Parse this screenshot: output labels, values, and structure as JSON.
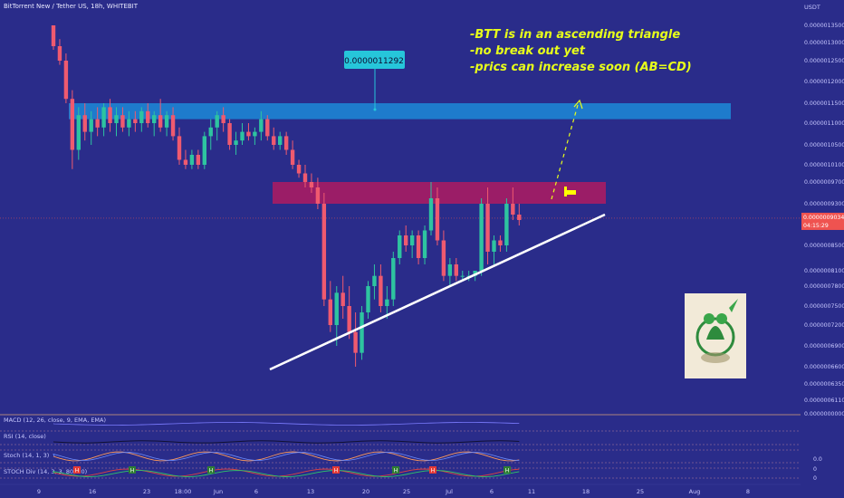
{
  "header": {
    "symbol_title": "BitTorrent New / Tether US, 18h, WHITEBIT",
    "currency": "USDT"
  },
  "price_axis": {
    "ticks": [
      "0.0000013500",
      "0.0000013000",
      "0.0000012500",
      "0.0000012000",
      "0.0000011500",
      "0.0000011000",
      "0.0000010500",
      "0.0000010100",
      "0.0000009700",
      "0.0000009300",
      "0.0000008900",
      "0.0000008500",
      "0.0000008100",
      "0.0000007800",
      "0.0000007500",
      "0.0000007200",
      "0.0000006900",
      "0.0000006600",
      "0.0000006350",
      "0.0000006110",
      "0.0000000000"
    ],
    "current_price": "0.0000009034",
    "countdown": "04:15:29",
    "osc_ticks": [
      "0.0",
      "0",
      "0"
    ]
  },
  "time_axis": {
    "labels": [
      "9",
      "16",
      "23",
      "18:00",
      "Jun",
      "6",
      "13",
      "20",
      "25",
      "Jul",
      "6",
      "11",
      "18",
      "25",
      "Aug",
      "8"
    ]
  },
  "annotation": {
    "lines": [
      "-BTT is in an ascending triangle",
      "-no break out yet",
      "-prics can increase soon (AB=CD)"
    ],
    "price_label": "0.0000011292"
  },
  "indicators": {
    "macd": "MACD (12, 26, close, 9, EMA, EMA)",
    "rsi": "RSI (14, close)",
    "stoch": "Stoch (14, 1, 3)",
    "stoch_div": "STOCH Div (14, 3, 3, 80, 20)",
    "marker_labels": [
      "H",
      "H",
      "H",
      "H",
      "H",
      "H",
      "H"
    ]
  },
  "colors": {
    "background": "#2a2c8a",
    "up_candle": "#2ec4a0",
    "down_candle": "#ef5a6f",
    "resistance_zone": "#1e7fd0",
    "supply_zone": "#c2185b",
    "trendline": "#ffffff",
    "annotation_text": "#e8ff1a",
    "price_tag": "#ef5350"
  },
  "chart_data": {
    "type": "candlestick",
    "title": "BitTorrent New / Tether US, 18h, WHITEBIT",
    "ylabel": "USDT",
    "ylim": [
      6.1e-07,
      1.35e-06
    ],
    "zones": [
      {
        "name": "resistance",
        "from": 1.11e-06,
        "to": 1.15e-06
      },
      {
        "name": "supply",
        "from": 9.3e-07,
        "to": 9.7e-07
      }
    ],
    "trendline": {
      "from": {
        "x": 49,
        "y": 6.5e-07
      },
      "to": {
        "x": 105,
        "y": 9.1e-07
      }
    },
    "projection": {
      "from": {
        "x": 99,
        "y": 9.3e-07
      },
      "to": {
        "x": 103,
        "y": 1.16e-06
      }
    },
    "candles": [
      {
        "i": 0,
        "o": 1.35e-06,
        "h": 1.37e-06,
        "l": 1.28e-06,
        "c": 1.29e-06
      },
      {
        "i": 1,
        "o": 1.29e-06,
        "h": 1.31e-06,
        "l": 1.24e-06,
        "c": 1.25e-06
      },
      {
        "i": 2,
        "o": 1.25e-06,
        "h": 1.27e-06,
        "l": 1.15e-06,
        "c": 1.16e-06
      },
      {
        "i": 3,
        "o": 1.16e-06,
        "h": 1.18e-06,
        "l": 1e-06,
        "c": 1.04e-06
      },
      {
        "i": 4,
        "o": 1.04e-06,
        "h": 1.14e-06,
        "l": 1.02e-06,
        "c": 1.12e-06
      },
      {
        "i": 5,
        "o": 1.12e-06,
        "h": 1.15e-06,
        "l": 1.06e-06,
        "c": 1.08e-06
      },
      {
        "i": 6,
        "o": 1.08e-06,
        "h": 1.13e-06,
        "l": 1.05e-06,
        "c": 1.11e-06
      },
      {
        "i": 7,
        "o": 1.11e-06,
        "h": 1.14e-06,
        "l": 1.07e-06,
        "c": 1.09e-06
      },
      {
        "i": 8,
        "o": 1.09e-06,
        "h": 1.15e-06,
        "l": 1.07e-06,
        "c": 1.14e-06
      },
      {
        "i": 9,
        "o": 1.14e-06,
        "h": 1.16e-06,
        "l": 1.08e-06,
        "c": 1.1e-06
      },
      {
        "i": 10,
        "o": 1.1e-06,
        "h": 1.14e-06,
        "l": 1.07e-06,
        "c": 1.12e-06
      },
      {
        "i": 11,
        "o": 1.12e-06,
        "h": 1.14e-06,
        "l": 1.08e-06,
        "c": 1.09e-06
      },
      {
        "i": 12,
        "o": 1.09e-06,
        "h": 1.13e-06,
        "l": 1.07e-06,
        "c": 1.11e-06
      },
      {
        "i": 13,
        "o": 1.11e-06,
        "h": 1.13e-06,
        "l": 1.08e-06,
        "c": 1.1e-06
      },
      {
        "i": 14,
        "o": 1.1e-06,
        "h": 1.14e-06,
        "l": 1.08e-06,
        "c": 1.13e-06
      },
      {
        "i": 15,
        "o": 1.13e-06,
        "h": 1.15e-06,
        "l": 1.09e-06,
        "c": 1.1e-06
      },
      {
        "i": 16,
        "o": 1.1e-06,
        "h": 1.13e-06,
        "l": 1.07e-06,
        "c": 1.12e-06
      },
      {
        "i": 17,
        "o": 1.12e-06,
        "h": 1.16e-06,
        "l": 1.08e-06,
        "c": 1.09e-06
      },
      {
        "i": 18,
        "o": 1.09e-06,
        "h": 1.13e-06,
        "l": 1.07e-06,
        "c": 1.12e-06
      },
      {
        "i": 19,
        "o": 1.12e-06,
        "h": 1.14e-06,
        "l": 1.06e-06,
        "c": 1.07e-06
      },
      {
        "i": 20,
        "o": 1.07e-06,
        "h": 1.09e-06,
        "l": 1.01e-06,
        "c": 1.02e-06
      },
      {
        "i": 21,
        "o": 1.02e-06,
        "h": 1.04e-06,
        "l": 1e-06,
        "c": 1.01e-06
      },
      {
        "i": 22,
        "o": 1.01e-06,
        "h": 1.04e-06,
        "l": 1e-06,
        "c": 1.03e-06
      },
      {
        "i": 23,
        "o": 1.03e-06,
        "h": 1.04e-06,
        "l": 1e-06,
        "c": 1.01e-06
      },
      {
        "i": 24,
        "o": 1.01e-06,
        "h": 1.08e-06,
        "l": 1e-06,
        "c": 1.07e-06
      },
      {
        "i": 25,
        "o": 1.07e-06,
        "h": 1.11e-06,
        "l": 1.04e-06,
        "c": 1.09e-06
      },
      {
        "i": 26,
        "o": 1.09e-06,
        "h": 1.13e-06,
        "l": 1.06e-06,
        "c": 1.12e-06
      },
      {
        "i": 27,
        "o": 1.12e-06,
        "h": 1.14e-06,
        "l": 1.08e-06,
        "c": 1.1e-06
      },
      {
        "i": 28,
        "o": 1.1e-06,
        "h": 1.11e-06,
        "l": 1.04e-06,
        "c": 1.05e-06
      },
      {
        "i": 29,
        "o": 1.05e-06,
        "h": 1.08e-06,
        "l": 1.03e-06,
        "c": 1.06e-06
      },
      {
        "i": 30,
        "o": 1.06e-06,
        "h": 1.1e-06,
        "l": 1.05e-06,
        "c": 1.08e-06
      },
      {
        "i": 31,
        "o": 1.08e-06,
        "h": 1.1e-06,
        "l": 1.06e-06,
        "c": 1.07e-06
      },
      {
        "i": 32,
        "o": 1.07e-06,
        "h": 1.09e-06,
        "l": 1.05e-06,
        "c": 1.08e-06
      },
      {
        "i": 33,
        "o": 1.08e-06,
        "h": 1.13e-06,
        "l": 1.06e-06,
        "c": 1.11e-06
      },
      {
        "i": 34,
        "o": 1.11e-06,
        "h": 1.12e-06,
        "l": 1.06e-06,
        "c": 1.07e-06
      },
      {
        "i": 35,
        "o": 1.07e-06,
        "h": 1.09e-06,
        "l": 1.04e-06,
        "c": 1.05e-06
      },
      {
        "i": 36,
        "o": 1.05e-06,
        "h": 1.08e-06,
        "l": 1.04e-06,
        "c": 1.07e-06
      },
      {
        "i": 37,
        "o": 1.07e-06,
        "h": 1.08e-06,
        "l": 1.03e-06,
        "c": 1.04e-06
      },
      {
        "i": 38,
        "o": 1.04e-06,
        "h": 1.06e-06,
        "l": 1e-06,
        "c": 1.01e-06
      },
      {
        "i": 39,
        "o": 1.01e-06,
        "h": 1.02e-06,
        "l": 9.8e-07,
        "c": 9.9e-07
      },
      {
        "i": 40,
        "o": 9.9e-07,
        "h": 1.01e-06,
        "l": 9.6e-07,
        "c": 9.7e-07
      },
      {
        "i": 41,
        "o": 9.7e-07,
        "h": 9.9e-07,
        "l": 9.5e-07,
        "c": 9.6e-07
      },
      {
        "i": 42,
        "o": 9.6e-07,
        "h": 9.8e-07,
        "l": 9.2e-07,
        "c": 9.3e-07
      },
      {
        "i": 43,
        "o": 9.3e-07,
        "h": 9.5e-07,
        "l": 7.5e-07,
        "c": 7.6e-07
      },
      {
        "i": 44,
        "o": 7.6e-07,
        "h": 7.9e-07,
        "l": 7.1e-07,
        "c": 7.2e-07
      },
      {
        "i": 45,
        "o": 7.2e-07,
        "h": 7.8e-07,
        "l": 6.9e-07,
        "c": 7.7e-07
      },
      {
        "i": 46,
        "o": 7.7e-07,
        "h": 8e-07,
        "l": 7.3e-07,
        "c": 7.5e-07
      },
      {
        "i": 47,
        "o": 7.5e-07,
        "h": 7.8e-07,
        "l": 7e-07,
        "c": 7.1e-07
      },
      {
        "i": 48,
        "o": 7.1e-07,
        "h": 7.4e-07,
        "l": 6.6e-07,
        "c": 6.8e-07
      },
      {
        "i": 49,
        "o": 6.8e-07,
        "h": 7.5e-07,
        "l": 6.7e-07,
        "c": 7.4e-07
      },
      {
        "i": 50,
        "o": 7.4e-07,
        "h": 7.9e-07,
        "l": 7.3e-07,
        "c": 7.8e-07
      },
      {
        "i": 51,
        "o": 7.8e-07,
        "h": 8.2e-07,
        "l": 7.6e-07,
        "c": 8e-07
      },
      {
        "i": 52,
        "o": 8e-07,
        "h": 8.2e-07,
        "l": 7.4e-07,
        "c": 7.5e-07
      },
      {
        "i": 53,
        "o": 7.5e-07,
        "h": 7.8e-07,
        "l": 7.3e-07,
        "c": 7.6e-07
      },
      {
        "i": 54,
        "o": 7.6e-07,
        "h": 8.4e-07,
        "l": 7.5e-07,
        "c": 8.3e-07
      },
      {
        "i": 55,
        "o": 8.3e-07,
        "h": 8.8e-07,
        "l": 8.2e-07,
        "c": 8.7e-07
      },
      {
        "i": 56,
        "o": 8.7e-07,
        "h": 8.9e-07,
        "l": 8.4e-07,
        "c": 8.5e-07
      },
      {
        "i": 57,
        "o": 8.5e-07,
        "h": 8.8e-07,
        "l": 8.3e-07,
        "c": 8.7e-07
      },
      {
        "i": 58,
        "o": 8.7e-07,
        "h": 8.8e-07,
        "l": 8.2e-07,
        "c": 8.3e-07
      },
      {
        "i": 59,
        "o": 8.3e-07,
        "h": 8.9e-07,
        "l": 8.2e-07,
        "c": 8.8e-07
      },
      {
        "i": 60,
        "o": 8.8e-07,
        "h": 9.7e-07,
        "l": 8.7e-07,
        "c": 9.4e-07
      },
      {
        "i": 61,
        "o": 9.4e-07,
        "h": 9.6e-07,
        "l": 8.5e-07,
        "c": 8.6e-07
      },
      {
        "i": 62,
        "o": 8.6e-07,
        "h": 8.8e-07,
        "l": 7.9e-07,
        "c": 8e-07
      },
      {
        "i": 63,
        "o": 8e-07,
        "h": 8.3e-07,
        "l": 7.8e-07,
        "c": 8.2e-07
      },
      {
        "i": 64,
        "o": 8.2e-07,
        "h": 8.3e-07,
        "l": 7.9e-07,
        "c": 8e-07
      },
      {
        "i": 65,
        "o": 8e-07,
        "h": 8.1e-07,
        "l": 7.9e-07,
        "c": 8e-07
      },
      {
        "i": 66,
        "o": 8e-07,
        "h": 8.1e-07,
        "l": 7.9e-07,
        "c": 8e-07
      },
      {
        "i": 67,
        "o": 8e-07,
        "h": 8.1e-07,
        "l": 7.9e-07,
        "c": 8.1e-07
      },
      {
        "i": 68,
        "o": 8.1e-07,
        "h": 9.4e-07,
        "l": 8e-07,
        "c": 9.3e-07
      },
      {
        "i": 69,
        "o": 9.3e-07,
        "h": 9.6e-07,
        "l": 8.2e-07,
        "c": 8.4e-07
      },
      {
        "i": 70,
        "o": 8.4e-07,
        "h": 8.7e-07,
        "l": 8.2e-07,
        "c": 8.6e-07
      },
      {
        "i": 71,
        "o": 8.6e-07,
        "h": 8.7e-07,
        "l": 8.4e-07,
        "c": 8.5e-07
      },
      {
        "i": 72,
        "o": 8.5e-07,
        "h": 9.4e-07,
        "l": 8.4e-07,
        "c": 9.3e-07
      },
      {
        "i": 73,
        "o": 9.3e-07,
        "h": 9.6e-07,
        "l": 9e-07,
        "c": 9.1e-07
      },
      {
        "i": 74,
        "o": 9.1e-07,
        "h": 9.3e-07,
        "l": 8.9e-07,
        "c": 9e-07
      }
    ]
  }
}
